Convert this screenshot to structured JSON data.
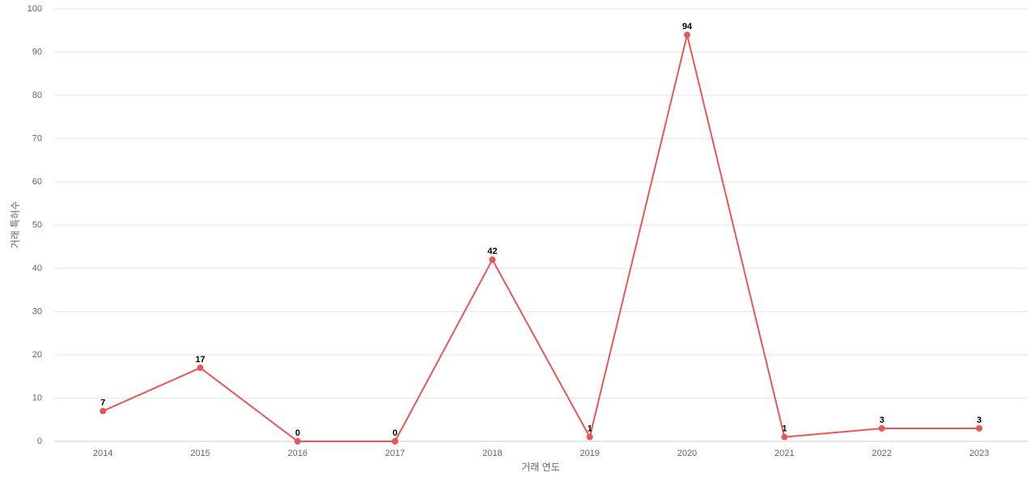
{
  "chart_data": {
    "type": "line",
    "x_label": "거래 연도",
    "y_label": "거래 특허수",
    "categories": [
      "2014",
      "2015",
      "2016",
      "2017",
      "2018",
      "2019",
      "2020",
      "2021",
      "2022",
      "2023"
    ],
    "values": [
      7,
      17,
      0,
      0,
      42,
      1,
      94,
      1,
      3,
      3
    ],
    "color": "#e85757",
    "ylim": [
      0,
      100
    ],
    "yticks": [
      0,
      10,
      20,
      30,
      40,
      50,
      60,
      70,
      80,
      90,
      100
    ],
    "grid": true
  }
}
